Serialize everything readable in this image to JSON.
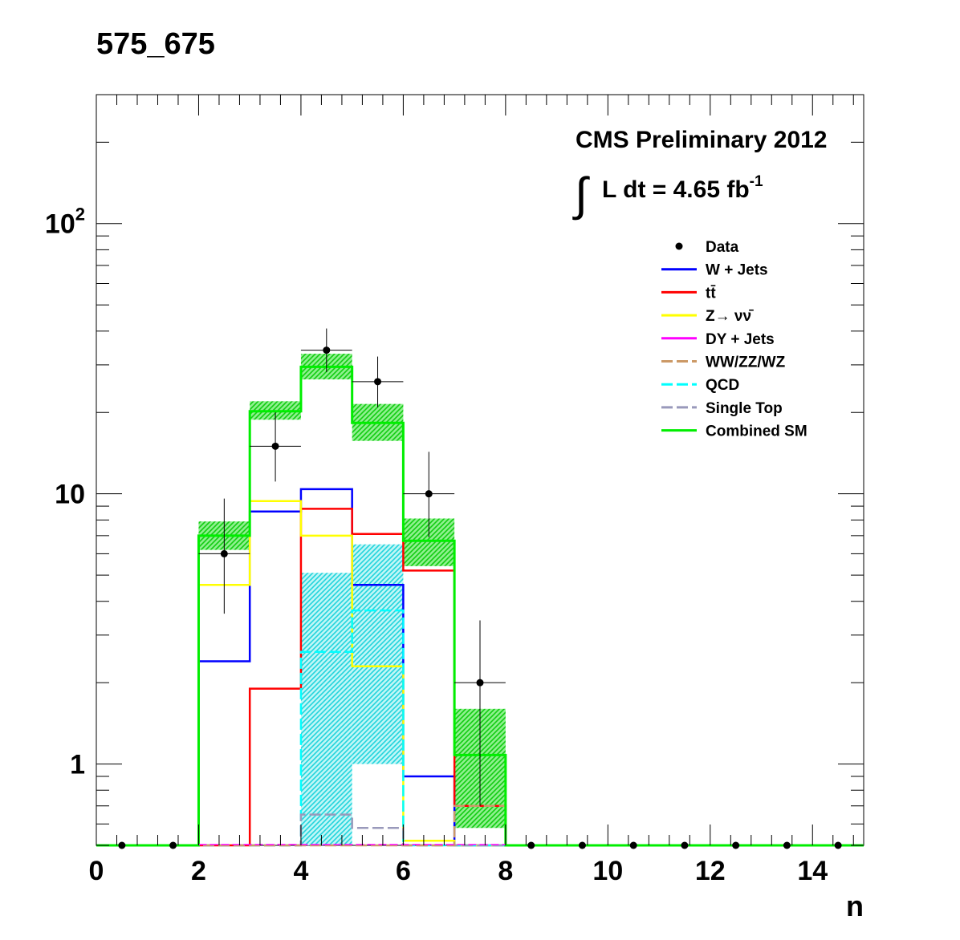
{
  "page_title": "575_675",
  "chart_data": {
    "type": "histogram",
    "xlabel": "n",
    "ylabel": "",
    "xlim": [
      0,
      15
    ],
    "ylim": [
      0.5,
      300
    ],
    "yscale": "log",
    "x_ticks": [
      "0",
      "2",
      "4",
      "6",
      "8",
      "10",
      "12",
      "14"
    ],
    "y_ticks": [
      {
        "value": 1,
        "label": "1"
      },
      {
        "value": 10,
        "label": "10"
      },
      {
        "value": 100,
        "label": "10",
        "exponent": "2"
      }
    ],
    "annotation": {
      "line1": "CMS Preliminary 2012",
      "line2": "L dt = 4.65 fb",
      "line2_sup": "-1",
      "integral": "∫"
    },
    "legend": [
      {
        "key": "data",
        "label": "Data",
        "style": "marker",
        "color": "#000000"
      },
      {
        "key": "wjets",
        "label": "W + Jets",
        "style": "line",
        "color": "#0000ff"
      },
      {
        "key": "tt",
        "label": "tt̄",
        "style": "line",
        "color": "#ff0000"
      },
      {
        "key": "znunu",
        "label": "Z→ νν̄",
        "style": "line",
        "color": "#ffff00"
      },
      {
        "key": "dy",
        "label": "DY + Jets",
        "style": "line",
        "color": "#ff00ff"
      },
      {
        "key": "diboson",
        "label": "WW/ZZ/WZ",
        "style": "dashed",
        "color": "#cc9966"
      },
      {
        "key": "qcd",
        "label": "QCD",
        "style": "dashed",
        "color": "#00ffff"
      },
      {
        "key": "singletop",
        "label": "Single Top",
        "style": "dashed",
        "color": "#9999bb"
      },
      {
        "key": "combined",
        "label": "Combined SM",
        "style": "line",
        "color": "#00ee00"
      }
    ],
    "bin_edges": [
      0,
      1,
      2,
      3,
      4,
      5,
      6,
      7,
      8,
      9,
      10,
      11,
      12,
      13,
      14,
      15
    ],
    "series": [
      {
        "key": "wjets",
        "color": "#0000ff",
        "values": [
          0,
          0,
          2.4,
          8.6,
          10.4,
          4.6,
          0.9,
          0,
          0,
          0,
          0,
          0,
          0,
          0,
          0
        ]
      },
      {
        "key": "tt",
        "color": "#ff0000",
        "values": [
          0,
          0,
          0,
          1.9,
          8.8,
          7.1,
          5.2,
          0.7,
          0,
          0,
          0,
          0,
          0,
          0,
          0
        ]
      },
      {
        "key": "znunu",
        "color": "#ffff00",
        "values": [
          0,
          0,
          4.6,
          9.4,
          7.0,
          2.3,
          0.52,
          0,
          0,
          0,
          0,
          0,
          0,
          0,
          0
        ]
      },
      {
        "key": "qcd",
        "color": "#00ffff",
        "values": [
          0,
          0,
          0,
          0,
          2.6,
          3.7,
          0,
          0,
          0,
          0,
          0,
          0,
          0,
          0,
          0
        ]
      },
      {
        "key": "singletop",
        "color": "#9999bb",
        "values": [
          0,
          0,
          0,
          0,
          0.65,
          0.58,
          0,
          0,
          0,
          0,
          0,
          0,
          0,
          0,
          0
        ]
      },
      {
        "key": "diboson",
        "color": "#cc9966",
        "values": [
          0,
          0,
          0,
          0,
          0,
          0,
          0,
          0.7,
          0,
          0,
          0,
          0,
          0,
          0,
          0
        ]
      },
      {
        "key": "combined",
        "color": "#00ee00",
        "values": [
          0,
          0,
          7.0,
          20.2,
          29.5,
          18.3,
          6.7,
          1.08,
          0,
          0,
          0,
          0,
          0,
          0,
          0
        ]
      }
    ],
    "combined_band": [
      {
        "x0": 2,
        "x1": 3,
        "low": 6.2,
        "high": 7.9
      },
      {
        "x0": 3,
        "x1": 4,
        "low": 18.8,
        "high": 22.0
      },
      {
        "x0": 4,
        "x1": 5,
        "low": 26.5,
        "high": 33.0
      },
      {
        "x0": 5,
        "x1": 6,
        "low": 15.7,
        "high": 21.5
      },
      {
        "x0": 6,
        "x1": 7,
        "low": 5.4,
        "high": 8.1
      },
      {
        "x0": 7,
        "x1": 8,
        "low": 0.58,
        "high": 1.6
      }
    ],
    "qcd_band": [
      {
        "x0": 4,
        "x1": 5,
        "low": 0.5,
        "high": 5.1
      },
      {
        "x0": 5,
        "x1": 6,
        "low": 1.0,
        "high": 6.5
      }
    ],
    "data_points": [
      {
        "x": 0.5,
        "y": 0
      },
      {
        "x": 1.5,
        "y": 0
      },
      {
        "x": 2.5,
        "y": 6,
        "err_low": 2.4,
        "err_high": 3.6
      },
      {
        "x": 3.5,
        "y": 15,
        "err_low": 3.9,
        "err_high": 5.0
      },
      {
        "x": 4.5,
        "y": 34,
        "err_low": 5.8,
        "err_high": 6.9
      },
      {
        "x": 5.5,
        "y": 26,
        "err_low": 5.1,
        "err_high": 6.2
      },
      {
        "x": 6.5,
        "y": 10,
        "err_low": 3.1,
        "err_high": 4.3
      },
      {
        "x": 7.5,
        "y": 2,
        "err_low": 1.3,
        "err_high": 1.4
      },
      {
        "x": 8.5,
        "y": 0
      },
      {
        "x": 9.5,
        "y": 0
      },
      {
        "x": 10.5,
        "y": 0
      },
      {
        "x": 11.5,
        "y": 0
      },
      {
        "x": 12.5,
        "y": 0
      },
      {
        "x": 13.5,
        "y": 0
      },
      {
        "x": 14.5,
        "y": 0
      }
    ]
  }
}
